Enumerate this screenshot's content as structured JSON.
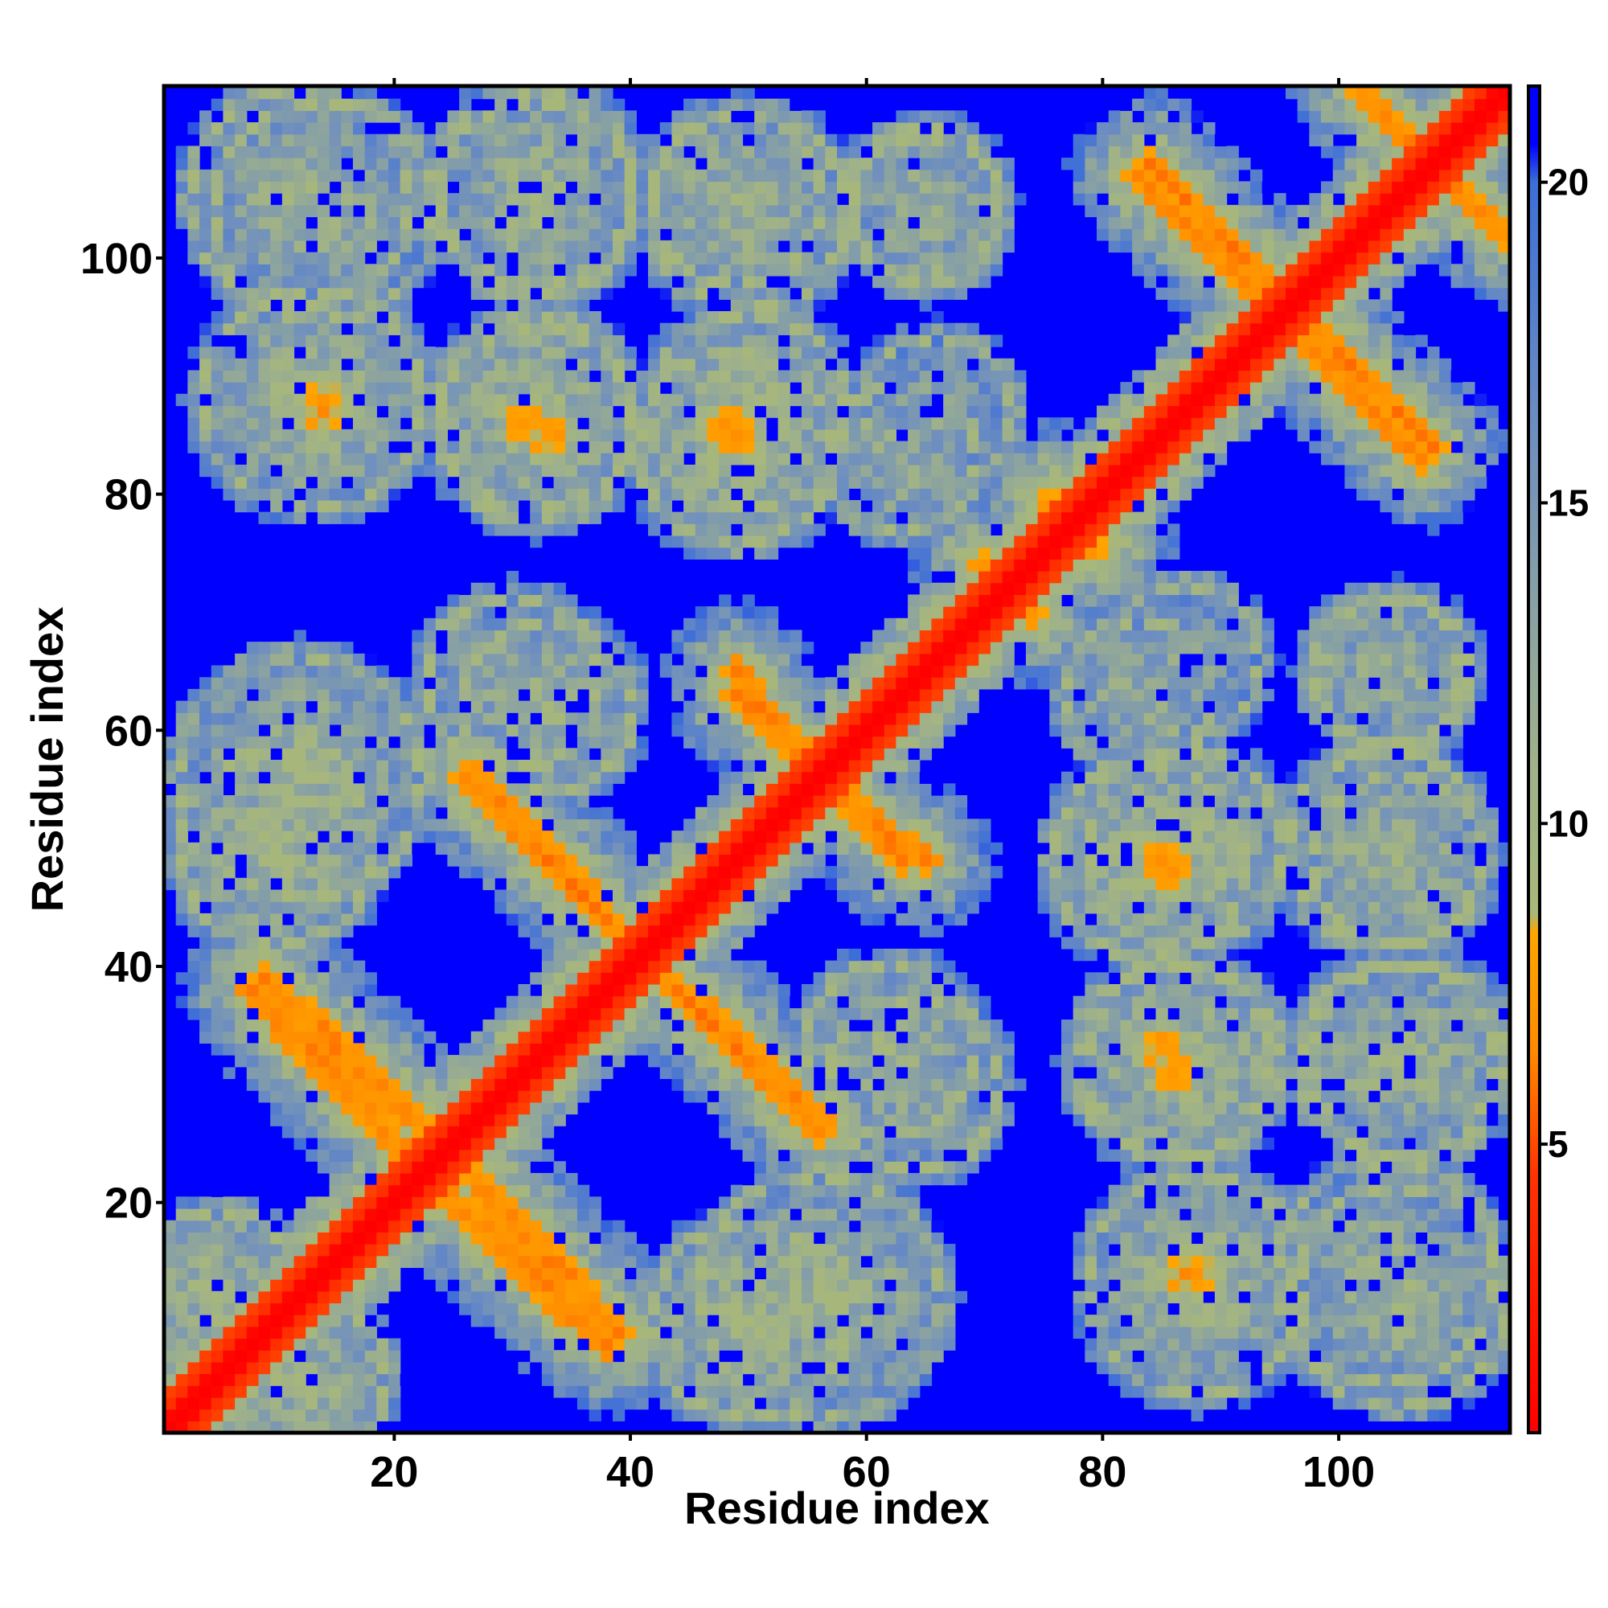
{
  "chart_data": {
    "type": "heatmap",
    "title": "",
    "xlabel": "Residue index",
    "ylabel": "Residue index",
    "n_residues": 114,
    "xlim": [
      1,
      114
    ],
    "ylim": [
      1,
      114
    ],
    "x_ticks": [
      20,
      40,
      60,
      80,
      100
    ],
    "y_ticks": [
      20,
      40,
      60,
      80,
      100
    ],
    "colorbar": {
      "ticks": [
        5,
        10,
        15,
        20
      ],
      "range": [
        0.5,
        21.5
      ],
      "colors": [
        {
          "value": 0.5,
          "color": "#ff0000"
        },
        {
          "value": 4.5,
          "color": "#ff3300"
        },
        {
          "value": 6.5,
          "color": "#ff8c00"
        },
        {
          "value": 8.3,
          "color": "#ffa500"
        },
        {
          "value": 8.6,
          "color": "#a8b87a"
        },
        {
          "value": 11.0,
          "color": "#9fb18a"
        },
        {
          "value": 16.0,
          "color": "#6f8fbf"
        },
        {
          "value": 20.0,
          "color": "#3d6ed8"
        },
        {
          "value": 20.6,
          "color": "#0000ff"
        },
        {
          "value": 21.5,
          "color": "#0000ff"
        }
      ]
    },
    "grid": false,
    "legend": "colorbar-right",
    "diagonal_distance": 0,
    "far_distance": 21,
    "features": [
      {
        "kind": "anti-diagonal",
        "from": [
          9,
          39
        ],
        "to": [
          22,
          27
        ],
        "distance": 6.5,
        "width": 1.3
      },
      {
        "kind": "anti-diagonal",
        "from": [
          23,
          22
        ],
        "to": [
          38,
          8
        ],
        "distance": 6.5,
        "width": 1.3
      },
      {
        "kind": "anti-diagonal",
        "from": [
          27,
          56
        ],
        "to": [
          39,
          43
        ],
        "distance": 6.5,
        "width": 1.3
      },
      {
        "kind": "anti-diagonal",
        "from": [
          43,
          39
        ],
        "to": [
          56,
          26
        ],
        "distance": 6.5,
        "width": 1.3
      },
      {
        "kind": "anti-diagonal",
        "from": [
          49,
          65
        ],
        "to": [
          54,
          58
        ],
        "distance": 6.5,
        "width": 1.2
      },
      {
        "kind": "anti-diagonal",
        "from": [
          58,
          55
        ],
        "to": [
          63,
          49
        ],
        "distance": 6.5,
        "width": 1.2
      },
      {
        "kind": "anti-diagonal",
        "from": [
          84,
          108
        ],
        "to": [
          93,
          99
        ],
        "distance": 6.5,
        "width": 1.3
      },
      {
        "kind": "anti-diagonal",
        "from": [
          96,
          95
        ],
        "to": [
          107,
          83
        ],
        "distance": 6.5,
        "width": 1.3
      },
      {
        "kind": "anti-diagonal",
        "from": [
          102,
          114
        ],
        "to": [
          113,
          103
        ],
        "distance": 6.5,
        "width": 1.3
      },
      {
        "kind": "contact-patch",
        "center": [
          14,
          88
        ],
        "distance": 7.0,
        "radius": 2.2
      },
      {
        "kind": "contact-patch",
        "center": [
          31,
          86
        ],
        "distance": 7.0,
        "radius": 1.8
      },
      {
        "kind": "contact-patch",
        "center": [
          48,
          86
        ],
        "distance": 7.0,
        "radius": 1.6
      },
      {
        "kind": "contact-patch",
        "center": [
          85,
          49
        ],
        "distance": 7.0,
        "radius": 1.8
      },
      {
        "kind": "contact-patch",
        "center": [
          85,
          33
        ],
        "distance": 7.0,
        "radius": 1.8
      },
      {
        "kind": "contact-patch",
        "center": [
          87,
          14
        ],
        "distance": 7.0,
        "radius": 1.8
      },
      {
        "kind": "contact-patch",
        "center": [
          76,
          79
        ],
        "distance": 6.8,
        "radius": 2.2
      },
      {
        "kind": "contact-patch",
        "center": [
          70,
          74
        ],
        "distance": 7.0,
        "radius": 1.5
      },
      {
        "kind": "domain-halo",
        "center": [
          12,
          105
        ],
        "distance": 11,
        "radius": 9
      },
      {
        "kind": "domain-halo",
        "center": [
          32,
          105
        ],
        "distance": 11,
        "radius": 8
      },
      {
        "kind": "domain-halo",
        "center": [
          49,
          105
        ],
        "distance": 11,
        "radius": 7
      },
      {
        "kind": "domain-halo",
        "center": [
          65,
          105
        ],
        "distance": 12,
        "radius": 6
      },
      {
        "kind": "domain-halo",
        "center": [
          13,
          88
        ],
        "distance": 10,
        "radius": 9
      },
      {
        "kind": "domain-halo",
        "center": [
          32,
          86
        ],
        "distance": 10,
        "radius": 8
      },
      {
        "kind": "domain-halo",
        "center": [
          49,
          84
        ],
        "distance": 10,
        "radius": 8
      },
      {
        "kind": "domain-halo",
        "center": [
          63,
          83
        ],
        "distance": 12,
        "radius": 6
      },
      {
        "kind": "domain-halo",
        "center": [
          12,
          56
        ],
        "distance": 10,
        "radius": 10
      },
      {
        "kind": "domain-halo",
        "center": [
          33,
          62
        ],
        "distance": 11,
        "radius": 7
      },
      {
        "kind": "domain-halo",
        "center": [
          87,
          50
        ],
        "distance": 10,
        "radius": 8
      },
      {
        "kind": "domain-halo",
        "center": [
          104,
          50
        ],
        "distance": 11,
        "radius": 8
      },
      {
        "kind": "domain-halo",
        "center": [
          87,
          32
        ],
        "distance": 10,
        "radius": 8
      },
      {
        "kind": "domain-halo",
        "center": [
          106,
          32
        ],
        "distance": 11,
        "radius": 8
      },
      {
        "kind": "domain-halo",
        "center": [
          88,
          13
        ],
        "distance": 10,
        "radius": 9
      },
      {
        "kind": "domain-halo",
        "center": [
          104,
          14
        ],
        "distance": 11,
        "radius": 9
      },
      {
        "kind": "domain-halo",
        "center": [
          50,
          10
        ],
        "distance": 10,
        "radius": 8
      },
      {
        "kind": "domain-halo",
        "center": [
          64,
          30
        ],
        "distance": 12,
        "radius": 7
      },
      {
        "kind": "domain-halo",
        "center": [
          104,
          65
        ],
        "distance": 12,
        "radius": 6
      },
      {
        "kind": "domain-halo",
        "center": [
          87,
          66
        ],
        "distance": 13,
        "radius": 6
      },
      {
        "kind": "domain-halo",
        "center": [
          5,
          13
        ],
        "distance": 11,
        "radius": 6
      }
    ]
  }
}
